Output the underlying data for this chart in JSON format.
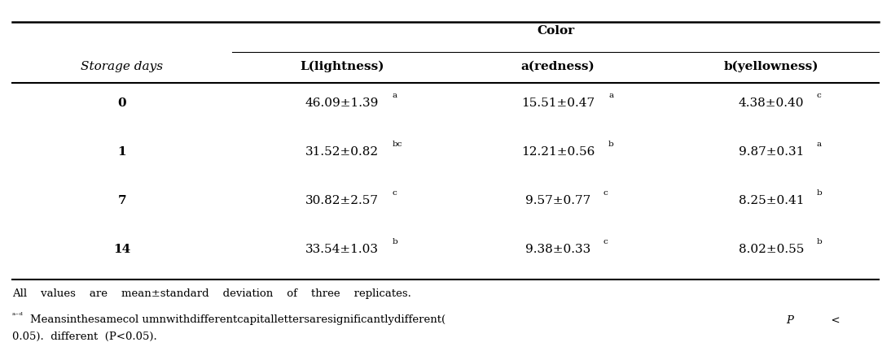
{
  "title": "Color",
  "col_header_row1": [
    "Storage days",
    "Color",
    "",
    ""
  ],
  "col_header_row2": [
    "",
    "L(lightness)",
    "a(redness)",
    "b(yellowness)"
  ],
  "rows": [
    [
      "0",
      "46.09±1.39",
      "a",
      "15.51±0.47",
      "a",
      "4.38±0.40",
      "c"
    ],
    [
      "1",
      "31.52±0.82",
      "bc",
      "12.21±0.56",
      "b",
      "9.87±0.31",
      "a"
    ],
    [
      "7",
      "30.82±2.57",
      "c",
      "9.57±0.77",
      "c",
      "8.25±0.41",
      "b"
    ],
    [
      "14",
      "33.54±1.03",
      "b",
      "9.38±0.33",
      "c",
      "8.02±0.55",
      "b"
    ]
  ],
  "footnote_line1": "All    values    are    mean±standard    deviation    of    three    replicates.",
  "footnote_line2": "ᵃ⁻ᵈMeansinthesamecol umnwithdifferentcapitallettersaresignificantlydifferent( P       <",
  "footnote_line3": "0.05).  different  (P<0.05).",
  "bg_color": "#ffffff",
  "text_color": "#000000",
  "line_color": "#000000"
}
